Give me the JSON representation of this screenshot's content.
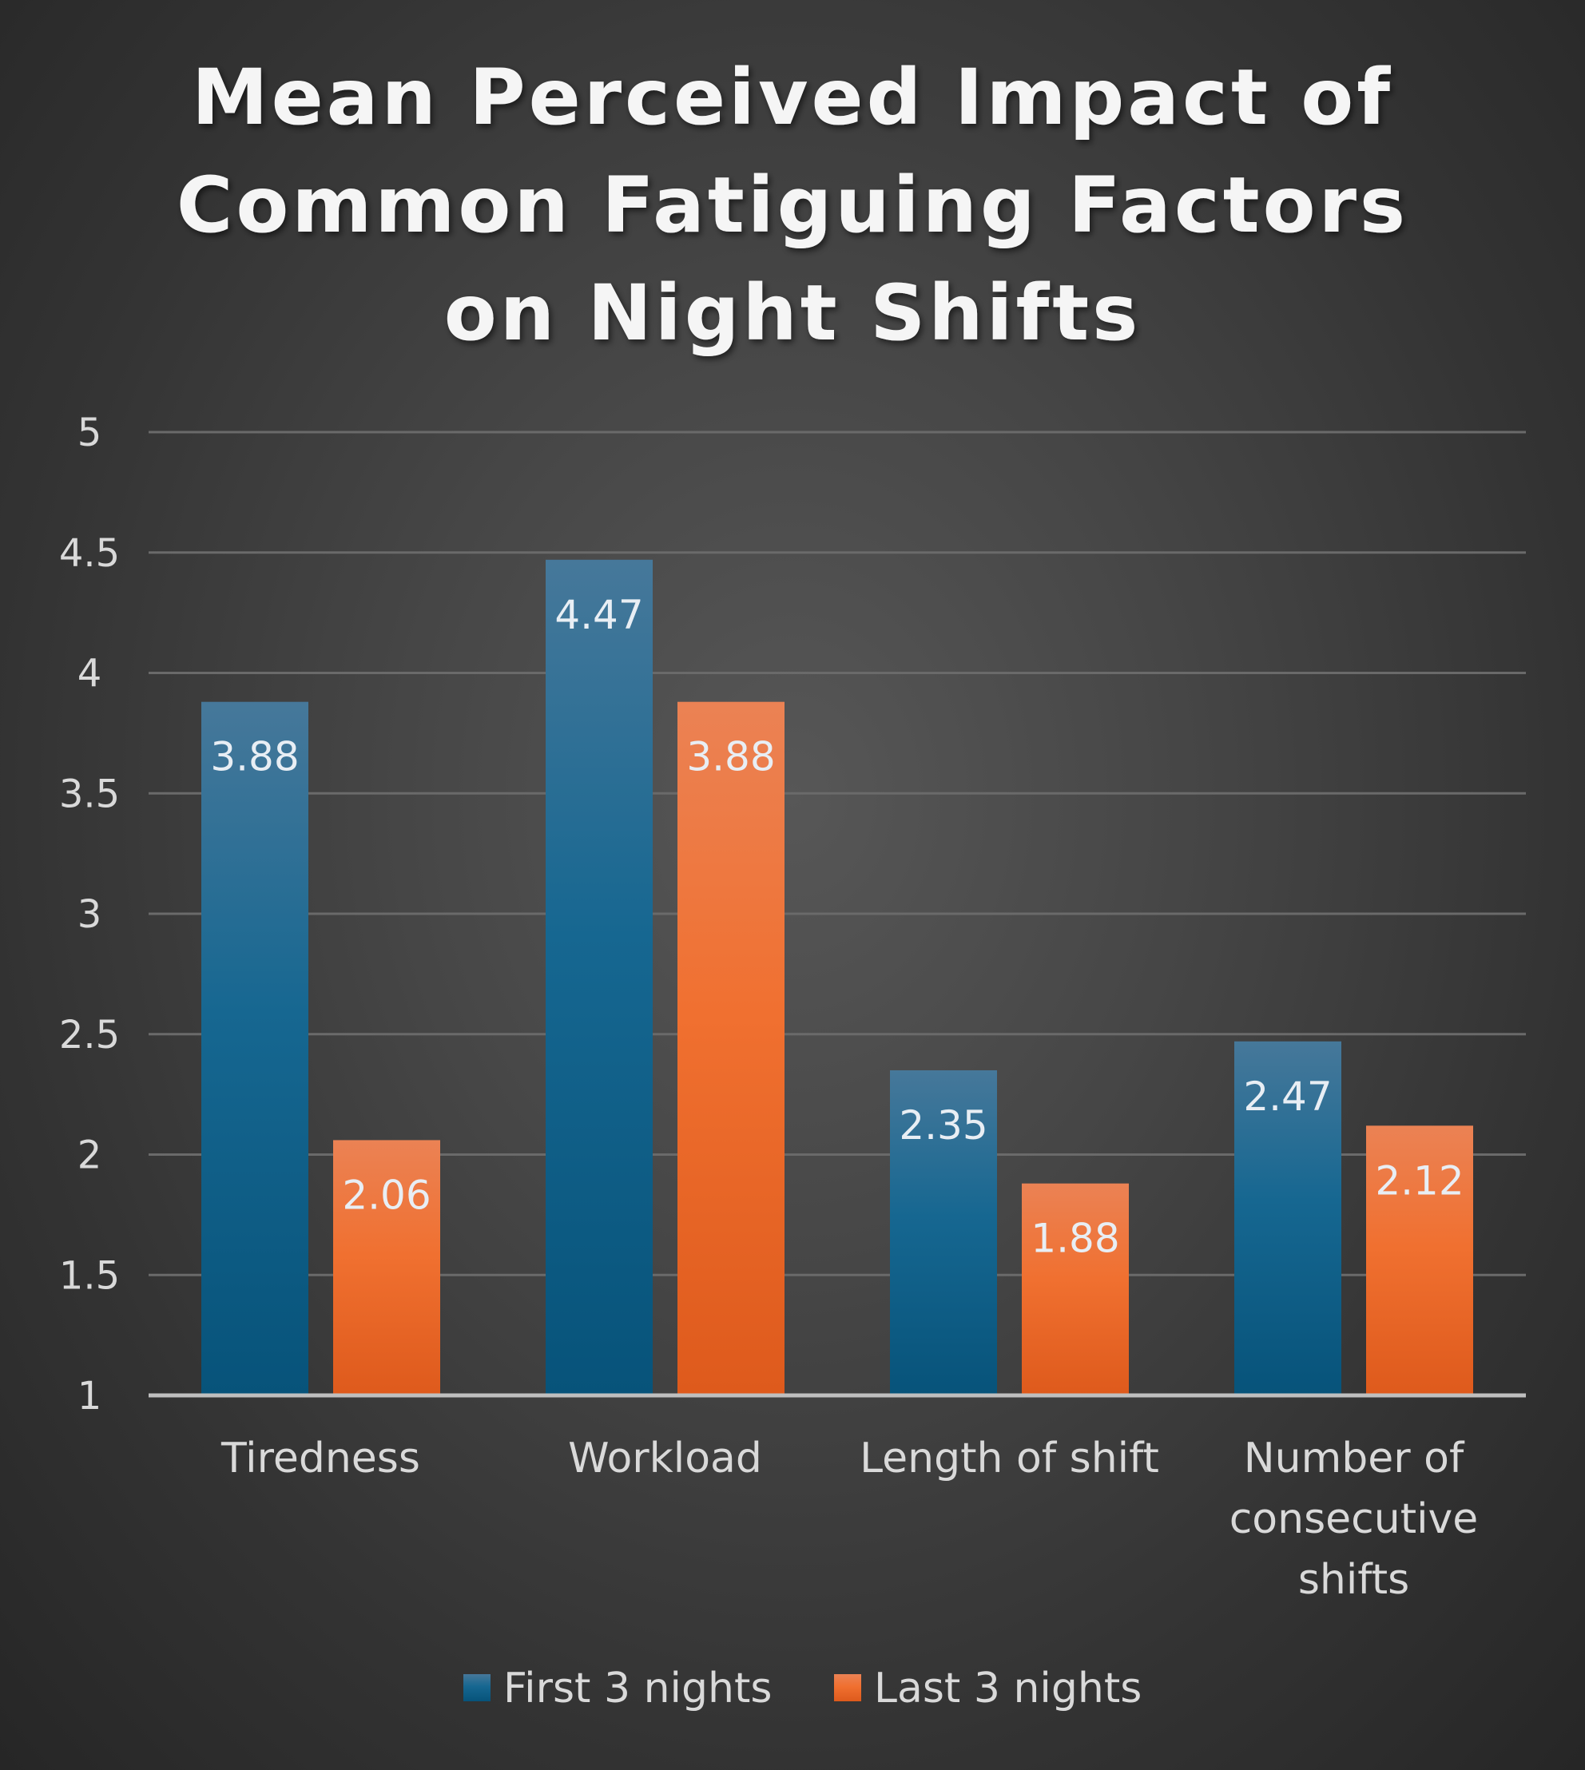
{
  "chart_data": {
    "type": "bar",
    "title_lines": [
      "Mean Perceived Impact of",
      "Common Fatiguing Factors",
      "on Night Shifts"
    ],
    "categories": [
      [
        "Tiredness"
      ],
      [
        "Workload"
      ],
      [
        "Length of shift"
      ],
      [
        "Number of",
        "consecutive",
        "shifts"
      ]
    ],
    "series": [
      {
        "name": "First 3 nights",
        "color": "#1a6a95",
        "values": [
          3.88,
          4.47,
          2.35,
          2.47
        ],
        "labels": [
          "3.88",
          "4.47",
          "2.35",
          "2.47"
        ]
      },
      {
        "name": "Last 3 nights",
        "color": "#f07030",
        "values": [
          2.06,
          3.88,
          1.88,
          2.12
        ],
        "labels": [
          "2.06",
          "3.88",
          "1.88",
          "2.12"
        ]
      }
    ],
    "ylim": [
      1,
      5
    ],
    "yticks": [
      "1",
      "1.5",
      "2",
      "2.5",
      "3",
      "3.5",
      "4",
      "4.5",
      "5"
    ],
    "grid": true,
    "legend": "bottom"
  }
}
